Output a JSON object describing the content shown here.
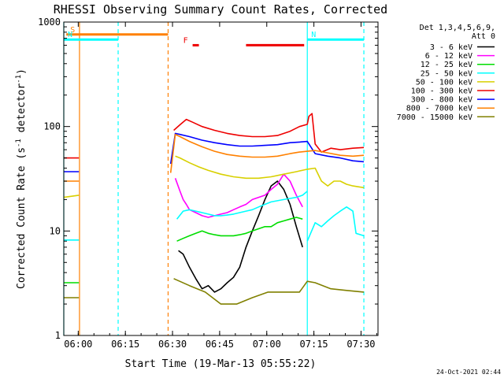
{
  "chart_data": {
    "type": "line",
    "title": "RHESSI Observing Summary Count Rates, Corrected",
    "xlabel": "Start Time (19-Mar-13 05:55:22)",
    "ylabel": "Corrected Count Rate (s^-1 detector^-1)",
    "ylabel_main": "Corrected Count Rate (s",
    "ylabel_sup1": "-1",
    "ylabel_mid": " detector",
    "ylabel_sup2": "-1",
    "ylabel_end": ")",
    "y_scale": "log",
    "ylim": [
      1,
      1000
    ],
    "xlim_minutes_after_start": [
      0,
      100
    ],
    "x_ticks": [
      "06:00",
      "06:15",
      "06:30",
      "06:45",
      "07:00",
      "07:15",
      "07:30"
    ],
    "x_tick_minutes": [
      4.6,
      19.6,
      34.6,
      49.6,
      64.6,
      79.6,
      94.6
    ],
    "y_ticks": [
      "1",
      "10",
      "100",
      "1000"
    ],
    "y_tick_values": [
      1,
      10,
      100,
      1000
    ],
    "grid": false,
    "legend": {
      "placement": "right",
      "header": [
        "Det 1,3,4,5,6,9,",
        "Att 0"
      ],
      "entries": [
        {
          "label": "3 - 6 keV",
          "color": "#000000"
        },
        {
          "label": "6 - 12 keV",
          "color": "#ff00ff"
        },
        {
          "label": "12 - 25 keV",
          "color": "#00dd00"
        },
        {
          "label": "25 - 50 keV",
          "color": "#00ffff"
        },
        {
          "label": "50 - 100 keV",
          "color": "#d8d000"
        },
        {
          "label": "100 - 300 keV",
          "color": "#ee0000"
        },
        {
          "label": "300 - 800 keV",
          "color": "#0000ff"
        },
        {
          "label": "800 - 7000 keV",
          "color": "#ff8000"
        },
        {
          "label": "7000 - 15000 keV",
          "color": "#808000"
        }
      ]
    },
    "flags": [
      {
        "label": "S",
        "color": "#ff8000",
        "start_minute": 0.8,
        "end_minute": 33.2,
        "level": 760
      },
      {
        "label": "N",
        "color": "#00ffff",
        "start_minute": 0,
        "end_minute": 17.3,
        "level": 680
      },
      {
        "label": "N",
        "color": "#00ffff",
        "start_minute": 77.5,
        "end_minute": 95.5,
        "level": 680
      },
      {
        "label": "F",
        "color": "#ee0000",
        "start_minute": 41,
        "end_minute": 43,
        "level": 600
      },
      {
        "label": "",
        "color": "#ee0000",
        "start_minute": 58,
        "end_minute": 76.5,
        "level": 600
      }
    ],
    "boundaries": [
      {
        "minute": 0,
        "color": "#00ffff",
        "style": "solid"
      },
      {
        "minute": 5,
        "color": "#ff8000",
        "style": "solid"
      },
      {
        "minute": 17.3,
        "color": "#00ffff",
        "style": "dashed"
      },
      {
        "minute": 33.2,
        "color": "#ff8000",
        "style": "dashed"
      },
      {
        "minute": 77.5,
        "color": "#00ffff",
        "style": "solid"
      },
      {
        "minute": 95.5,
        "color": "#00ffff",
        "style": "dashed"
      }
    ],
    "series": [
      {
        "name": "3 - 6 keV",
        "color": "#000000",
        "segments": [
          [
            [
              36.5,
              6.5
            ],
            [
              38,
              6
            ],
            [
              40,
              4.5
            ],
            [
              42,
              3.5
            ],
            [
              44,
              2.8
            ],
            [
              46,
              3
            ],
            [
              48,
              2.6
            ],
            [
              50,
              2.8
            ],
            [
              52,
              3.2
            ],
            [
              54,
              3.6
            ],
            [
              56,
              4.5
            ],
            [
              58,
              7
            ],
            [
              60,
              10
            ],
            [
              62,
              14
            ],
            [
              64,
              20
            ],
            [
              66,
              27
            ],
            [
              68,
              30
            ],
            [
              70,
              25
            ],
            [
              72,
              18
            ],
            [
              74,
              11
            ],
            [
              76,
              7
            ]
          ]
        ]
      },
      {
        "name": "6 - 12 keV",
        "color": "#ff00ff",
        "segments": [
          [
            [
              35.5,
              32
            ],
            [
              37,
              24
            ],
            [
              38,
              20
            ],
            [
              39,
              18
            ],
            [
              40,
              16
            ],
            [
              42,
              15
            ],
            [
              44,
              14
            ],
            [
              46,
              13.5
            ],
            [
              48,
              14
            ],
            [
              50,
              14.5
            ],
            [
              52,
              15
            ],
            [
              54,
              16
            ],
            [
              56,
              17
            ],
            [
              58,
              18
            ],
            [
              60,
              20
            ],
            [
              62,
              21
            ],
            [
              64,
              22
            ],
            [
              66,
              25
            ],
            [
              68,
              28
            ],
            [
              70,
              35
            ],
            [
              72,
              30
            ],
            [
              74,
              22
            ],
            [
              76,
              17
            ]
          ]
        ]
      },
      {
        "name": "12 - 25 keV",
        "color": "#00dd00",
        "segments": [
          [
            [
              0,
              3.2
            ],
            [
              4.8,
              3.2
            ]
          ],
          [
            [
              36,
              8
            ],
            [
              38,
              8.5
            ],
            [
              40,
              9
            ],
            [
              42,
              9.5
            ],
            [
              44,
              10
            ],
            [
              46,
              9.5
            ],
            [
              48,
              9.2
            ],
            [
              50,
              9
            ],
            [
              52,
              9
            ],
            [
              54,
              9
            ],
            [
              56,
              9.2
            ],
            [
              58,
              9.5
            ],
            [
              60,
              10
            ],
            [
              62,
              10.5
            ],
            [
              64,
              11
            ],
            [
              66,
              11
            ],
            [
              68,
              12
            ],
            [
              70,
              12.5
            ],
            [
              72,
              13
            ],
            [
              74,
              13.5
            ],
            [
              76,
              13
            ]
          ]
        ]
      },
      {
        "name": "25 - 50 keV",
        "color": "#00ffff",
        "segments": [
          [
            [
              0,
              8.2
            ],
            [
              4.8,
              8.2
            ]
          ],
          [
            [
              36,
              13
            ],
            [
              38,
              15.5
            ],
            [
              40,
              16
            ],
            [
              42,
              15.5
            ],
            [
              44,
              15
            ],
            [
              46,
              14.5
            ],
            [
              48,
              14
            ],
            [
              50,
              14
            ],
            [
              52,
              14.2
            ],
            [
              54,
              14.5
            ],
            [
              56,
              15
            ],
            [
              58,
              15.5
            ],
            [
              60,
              16
            ],
            [
              62,
              17
            ],
            [
              64,
              18
            ],
            [
              66,
              19
            ],
            [
              68,
              19.5
            ],
            [
              70,
              20
            ],
            [
              72,
              20.5
            ],
            [
              74,
              21
            ],
            [
              76,
              22
            ],
            [
              77.5,
              24
            ]
          ],
          [
            [
              77.5,
              8
            ],
            [
              80,
              12
            ],
            [
              82,
              11
            ],
            [
              84,
              12.5
            ],
            [
              86,
              14
            ],
            [
              88,
              15.5
            ],
            [
              90,
              17
            ],
            [
              92,
              15.5
            ],
            [
              93,
              9.5
            ],
            [
              95.5,
              9
            ]
          ]
        ]
      },
      {
        "name": "50 - 100 keV",
        "color": "#d8d000",
        "segments": [
          [
            [
              0,
              21
            ],
            [
              4.8,
              22
            ]
          ],
          [
            [
              35.5,
              52
            ],
            [
              37,
              50
            ],
            [
              40,
              45
            ],
            [
              43,
              41
            ],
            [
              46,
              38
            ],
            [
              50,
              35
            ],
            [
              54,
              33
            ],
            [
              58,
              32
            ],
            [
              62,
              32
            ],
            [
              66,
              33
            ],
            [
              70,
              35
            ],
            [
              74,
              37
            ],
            [
              77.5,
              39
            ],
            [
              80,
              40
            ],
            [
              82,
              30
            ],
            [
              84,
              27
            ],
            [
              86,
              30
            ],
            [
              88,
              30
            ],
            [
              90,
              28
            ],
            [
              92,
              27
            ],
            [
              95.5,
              26
            ]
          ]
        ]
      },
      {
        "name": "100 - 300 keV",
        "color": "#ee0000",
        "segments": [
          [
            [
              0,
              50
            ],
            [
              4.8,
              50
            ]
          ],
          [
            [
              35,
              92
            ],
            [
              37,
              104
            ],
            [
              39,
              117
            ],
            [
              41,
              110
            ],
            [
              44,
              100
            ],
            [
              48,
              92
            ],
            [
              52,
              86
            ],
            [
              56,
              82
            ],
            [
              60,
              80
            ],
            [
              64,
              80
            ],
            [
              68,
              82
            ],
            [
              72,
              90
            ],
            [
              75,
              100
            ],
            [
              77.5,
              105
            ],
            [
              78,
              125
            ],
            [
              79,
              133
            ],
            [
              80,
              68
            ],
            [
              82,
              57
            ],
            [
              85,
              62
            ],
            [
              88,
              60
            ],
            [
              92,
              62
            ],
            [
              95.5,
              63
            ]
          ]
        ]
      },
      {
        "name": "300 - 800 keV",
        "color": "#0000ff",
        "segments": [
          [
            [
              0,
              37
            ],
            [
              4.8,
              37
            ]
          ],
          [
            [
              34,
              44
            ],
            [
              35.5,
              86
            ],
            [
              37,
              84
            ],
            [
              40,
              80
            ],
            [
              44,
              74
            ],
            [
              48,
              70
            ],
            [
              52,
              67
            ],
            [
              56,
              65
            ],
            [
              60,
              65
            ],
            [
              64,
              66
            ],
            [
              68,
              67
            ],
            [
              72,
              70
            ],
            [
              75,
              71
            ],
            [
              77.5,
              72
            ],
            [
              80,
              55
            ],
            [
              84,
              52
            ],
            [
              88,
              50
            ],
            [
              92,
              47
            ],
            [
              95.5,
              46
            ]
          ]
        ]
      },
      {
        "name": "800 - 7000 keV",
        "color": "#ff8000",
        "segments": [
          [
            [
              0,
              30
            ],
            [
              4.8,
              30
            ]
          ],
          [
            [
              34,
              36
            ],
            [
              35.5,
              84
            ],
            [
              37,
              80
            ],
            [
              40,
              72
            ],
            [
              44,
              64
            ],
            [
              48,
              58
            ],
            [
              52,
              54
            ],
            [
              56,
              52
            ],
            [
              60,
              51
            ],
            [
              64,
              51
            ],
            [
              68,
              52
            ],
            [
              72,
              55
            ],
            [
              75,
              57
            ],
            [
              77.5,
              58
            ],
            [
              80,
              59
            ],
            [
              84,
              56
            ],
            [
              88,
              53
            ],
            [
              92,
              52
            ],
            [
              95.5,
              53
            ]
          ]
        ]
      },
      {
        "name": "7000 - 15000 keV",
        "color": "#808000",
        "segments": [
          [
            [
              0,
              2.3
            ],
            [
              4.8,
              2.3
            ]
          ],
          [
            [
              35,
              3.5
            ],
            [
              40,
              3
            ],
            [
              45,
              2.6
            ],
            [
              50,
              2
            ],
            [
              55,
              2
            ],
            [
              60,
              2.3
            ],
            [
              65,
              2.6
            ],
            [
              70,
              2.6
            ],
            [
              75,
              2.6
            ],
            [
              77.5,
              3.3
            ],
            [
              80,
              3.2
            ],
            [
              85,
              2.8
            ],
            [
              90,
              2.7
            ],
            [
              95.5,
              2.6
            ]
          ]
        ]
      }
    ]
  },
  "footer": {
    "timestamp": "24-Oct-2021 02:44"
  }
}
